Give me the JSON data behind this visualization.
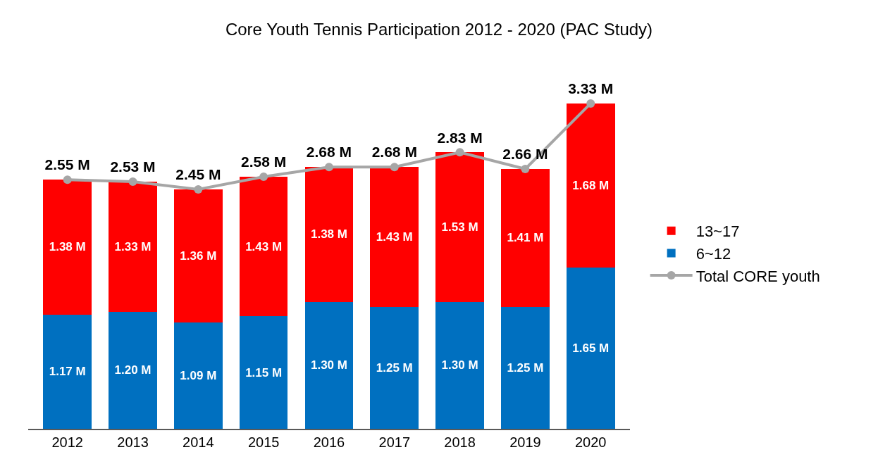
{
  "chart_data": {
    "type": "bar",
    "title": "Core Youth Tennis Participation 2012 - 2020 (PAC Study)",
    "categories": [
      "2012",
      "2013",
      "2014",
      "2015",
      "2016",
      "2017",
      "2018",
      "2019",
      "2020"
    ],
    "stacked": true,
    "legend": "right",
    "tick_labels": "x",
    "marker": "circle",
    "line_style": "solid",
    "series": [
      {
        "name": "6~12",
        "color": "#0070c0",
        "values": [
          1.17,
          1.2,
          1.09,
          1.15,
          1.3,
          1.25,
          1.3,
          1.25,
          1.65
        ],
        "value_labels": [
          "1.17 M",
          "1.20 M",
          "1.09 M",
          "1.15 M",
          "1.30 M",
          "1.25 M",
          "1.30 M",
          "1.25 M",
          "1.65 M"
        ]
      },
      {
        "name": "13~17",
        "color": "#ff0000",
        "values": [
          1.38,
          1.33,
          1.36,
          1.43,
          1.38,
          1.43,
          1.53,
          1.41,
          1.68
        ],
        "value_labels": [
          "1.38 M",
          "1.33 M",
          "1.36 M",
          "1.43 M",
          "1.38 M",
          "1.43 M",
          "1.53 M",
          "1.41 M",
          "1.68 M"
        ]
      },
      {
        "name": "Total CORE youth",
        "type": "line",
        "color": "#a6a6a6",
        "values": [
          2.55,
          2.53,
          2.45,
          2.58,
          2.68,
          2.68,
          2.83,
          2.66,
          3.33
        ],
        "value_labels": [
          "2.55 M",
          "2.53 M",
          "2.45 M",
          "2.58 M",
          "2.68 M",
          "2.68 M",
          "2.83 M",
          "2.66 M",
          "3.33 M"
        ]
      }
    ]
  }
}
